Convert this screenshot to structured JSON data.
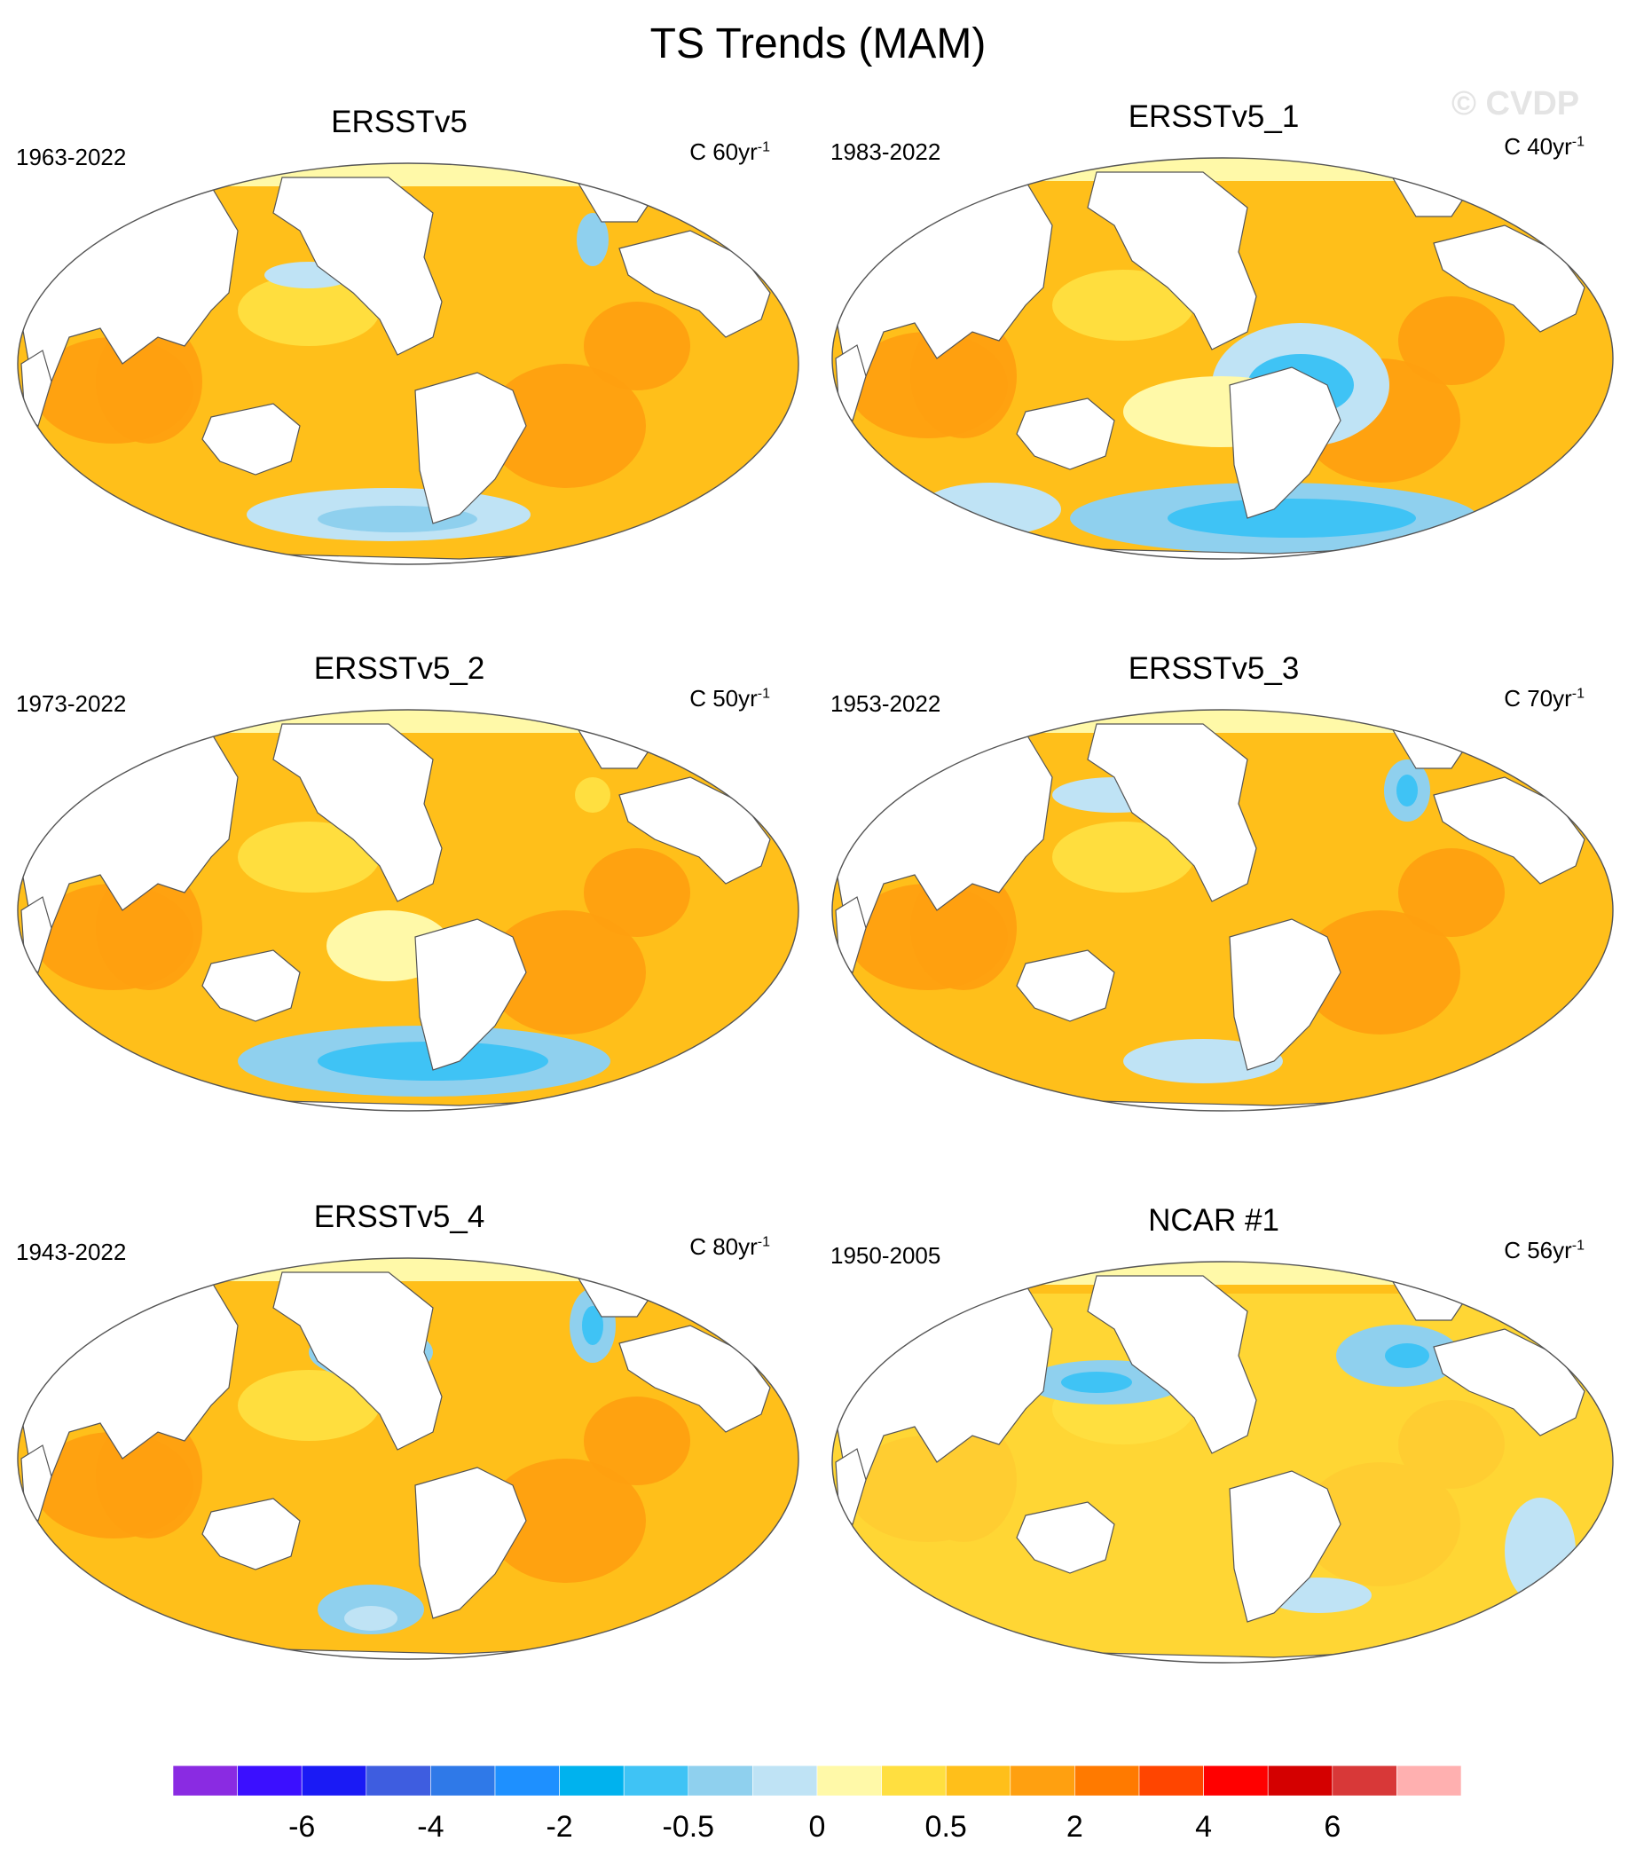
{
  "title": "TS Trends (MAM)",
  "watermark": "© CVDP",
  "chart_data": {
    "type": "contour-map",
    "projection": "Robinson (Pacific-centered)",
    "variable": "TS trend",
    "units_label": "C",
    "panels": [
      {
        "title": "ERSSTv5",
        "period": "1963-2022",
        "trend_span": "60",
        "start_year": 1963,
        "end_year": 2022
      },
      {
        "title": "ERSSTv5_1",
        "period": "1983-2022",
        "trend_span": "40",
        "start_year": 1983,
        "end_year": 2022
      },
      {
        "title": "ERSSTv5_2",
        "period": "1973-2022",
        "trend_span": "50",
        "start_year": 1973,
        "end_year": 2022
      },
      {
        "title": "ERSSTv5_3",
        "period": "1953-2022",
        "trend_span": "70",
        "start_year": 1953,
        "end_year": 2022
      },
      {
        "title": "ERSSTv5_4",
        "period": "1943-2022",
        "trend_span": "80",
        "start_year": 1943,
        "end_year": 2022
      },
      {
        "title": "NCAR #1",
        "period": "1950-2005",
        "trend_span": "56",
        "start_year": 1950,
        "end_year": 2005
      }
    ],
    "colorbar": {
      "levels": [
        "-8",
        "-7",
        "-6",
        "-5",
        "-4",
        "-3",
        "-2",
        "-1",
        "-0.5",
        "-0.25",
        "0",
        "0.25",
        "0.5",
        "1",
        "2",
        "3",
        "4",
        "5",
        "6",
        "7"
      ],
      "colors": [
        "#8a2be2",
        "#3b0fff",
        "#1a1af5",
        "#3e5de0",
        "#2f79e8",
        "#1e90ff",
        "#00b2ee",
        "#3fc3f5",
        "#8fd0ee",
        "#bfe3f5",
        "#fff9a8",
        "#ffdf40",
        "#ffbf1a",
        "#ffa010",
        "#ff7a00",
        "#ff4500",
        "#ff0000",
        "#d40000",
        "#d83838",
        "#ffb0b0"
      ],
      "tick_labels": [
        {
          "text": "-6",
          "at_box": 2
        },
        {
          "text": "-4",
          "at_box": 4
        },
        {
          "text": "-2",
          "at_box": 6
        },
        {
          "text": "-0.5",
          "at_box": 8
        },
        {
          "text": "0",
          "at_box": 10
        },
        {
          "text": "0.5",
          "at_box": 12
        },
        {
          "text": "2",
          "at_box": 14
        },
        {
          "text": "4",
          "at_box": 16
        },
        {
          "text": "6",
          "at_box": 18
        }
      ]
    }
  }
}
